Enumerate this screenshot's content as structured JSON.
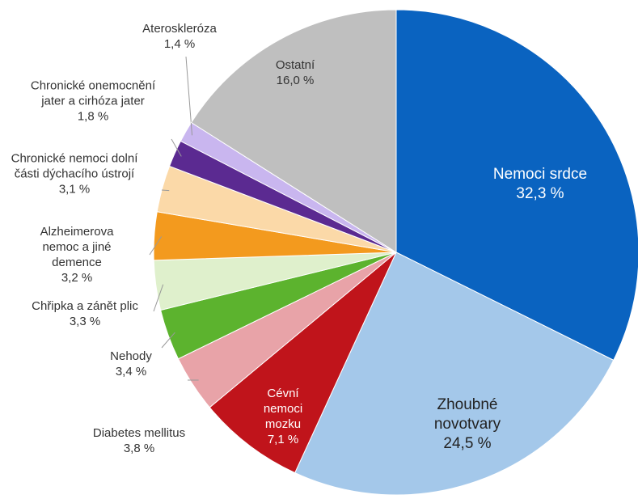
{
  "chart_data": {
    "type": "pie",
    "categories": [
      "Nemoci srdce",
      "Zhoubné novotvary",
      "Cévní nemoci mozku",
      "Diabetes mellitus",
      "Nehody",
      "Chřipka a zánět plic",
      "Alzheimerova nemoc a jiné demence",
      "Chronické nemoci dolní části dýchacího ústrojí",
      "Chronické onemocnění jater a cirhóza jater",
      "Ateroskleróza",
      "Ostatní"
    ],
    "values": [
      32.3,
      24.5,
      7.1,
      3.8,
      3.4,
      3.3,
      3.2,
      3.1,
      1.8,
      1.4,
      16.0
    ],
    "value_labels": [
      "32,3 %",
      "24,5 %",
      "7,1 %",
      "3,8 %",
      "3,4 %",
      "3,3 %",
      "3,2 %",
      "3,1 %",
      "1,8 %",
      "1,4 %",
      "16,0 %"
    ],
    "colors": [
      "#0a63c0",
      "#a4c8ea",
      "#c0141b",
      "#e8a3a8",
      "#5cb32e",
      "#dff0cc",
      "#f39a1e",
      "#fbd9a8",
      "#5b2a91",
      "#c9b6ef",
      "#bfbfbf"
    ]
  }
}
